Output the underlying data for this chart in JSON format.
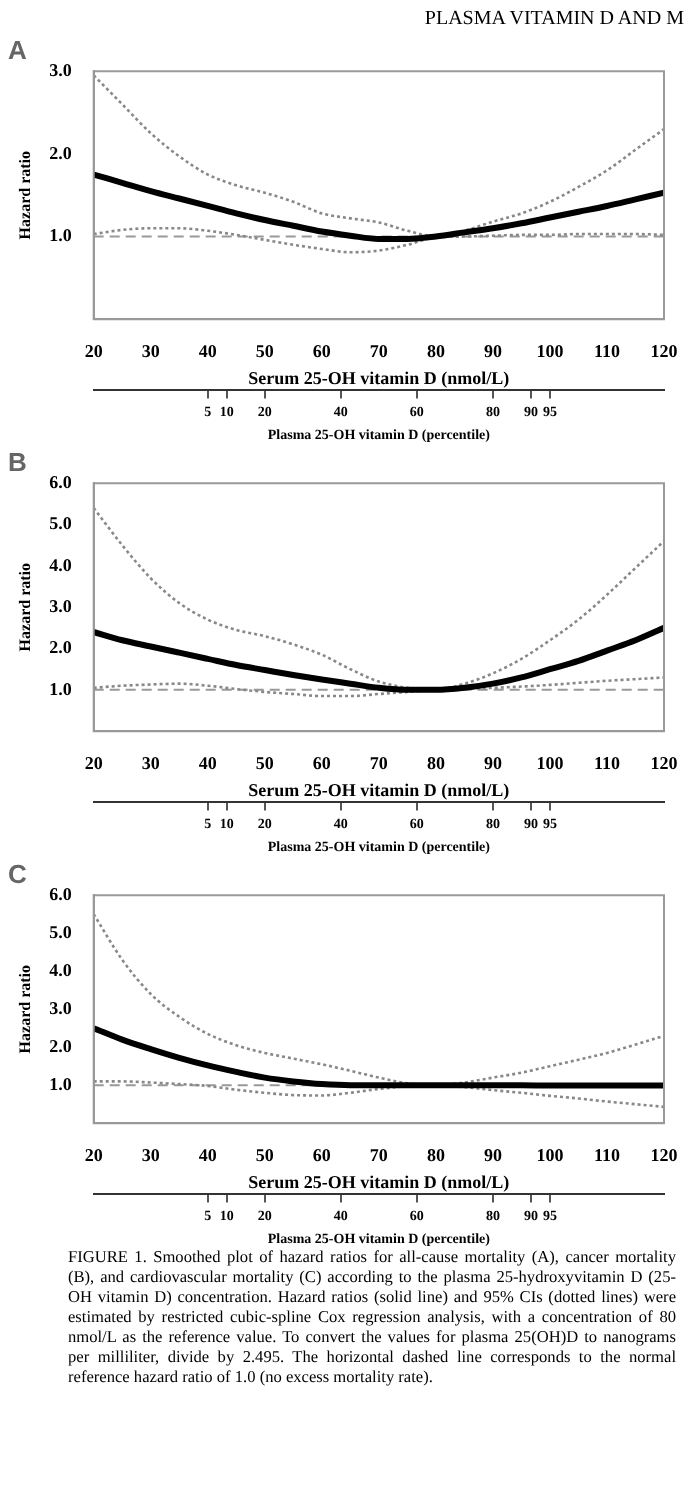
{
  "chart_data": [
    {
      "type": "line",
      "title": "A",
      "annotations": [
        "PLASMA VITAMIN D AND M"
      ],
      "xlabel": "Serum 25-OH vitamin D (nmol/L)",
      "x2label": "Plasma 25-OH vitamin D (percentile)",
      "ylabel": "Hazard ratio",
      "legend": false,
      "grid": false,
      "marker": "none",
      "x": [
        20,
        25,
        30,
        35,
        40,
        45,
        50,
        55,
        60,
        65,
        70,
        75,
        80,
        85,
        90,
        95,
        100,
        105,
        110,
        115,
        120
      ],
      "xlim": [
        20,
        120
      ],
      "xticks": [
        20,
        30,
        40,
        50,
        60,
        70,
        80,
        90,
        100,
        110,
        120
      ],
      "x2lim": [
        -25,
        125
      ],
      "x2ticks": [
        5,
        10,
        20,
        40,
        60,
        80,
        90,
        95
      ],
      "ylim": [
        0,
        3
      ],
      "yticks": [
        {
          "value": 1,
          "label": "1.0"
        },
        {
          "value": 2,
          "label": "2.0"
        },
        {
          "value": 3,
          "label": "3.0"
        }
      ],
      "ref_lines": [
        {
          "axis": "y",
          "value": 1,
          "color": "#999999",
          "line_style": "dashed"
        }
      ],
      "series": [
        {
          "color": "#000000",
          "line_style": "solid",
          "values": [
            1.75,
            1.65,
            1.55,
            1.46,
            1.37,
            1.28,
            1.2,
            1.13,
            1.06,
            1.01,
            0.97,
            0.97,
            1.0,
            1.05,
            1.1,
            1.16,
            1.23,
            1.3,
            1.37,
            1.45,
            1.53
          ]
        },
        {
          "color": "#888888",
          "line_style": "dotted",
          "values": [
            2.95,
            2.6,
            2.25,
            1.97,
            1.75,
            1.62,
            1.53,
            1.42,
            1.28,
            1.22,
            1.17,
            1.07,
            1.0,
            1.07,
            1.18,
            1.28,
            1.42,
            1.6,
            1.8,
            2.05,
            2.3
          ]
        },
        {
          "color": "#888888",
          "line_style": "dotted",
          "values": [
            1.03,
            1.08,
            1.1,
            1.1,
            1.07,
            1.02,
            0.96,
            0.9,
            0.85,
            0.81,
            0.83,
            0.9,
            0.99,
            1.0,
            1.01,
            1.02,
            1.02,
            1.03,
            1.03,
            1.03,
            1.02
          ]
        }
      ]
    },
    {
      "type": "line",
      "title": "B",
      "xlabel": "Serum 25-OH vitamin D (nmol/L)",
      "x2label": "Plasma 25-OH vitamin D (percentile)",
      "ylabel": "Hazard ratio",
      "legend": false,
      "grid": false,
      "marker": "none",
      "x": [
        20,
        25,
        30,
        35,
        40,
        45,
        50,
        55,
        60,
        65,
        70,
        75,
        80,
        85,
        90,
        95,
        100,
        105,
        110,
        115,
        120
      ],
      "xlim": [
        20,
        120
      ],
      "xticks": [
        20,
        30,
        40,
        50,
        60,
        70,
        80,
        90,
        100,
        110,
        120
      ],
      "x2lim": [
        -25,
        125
      ],
      "x2ticks": [
        5,
        10,
        20,
        40,
        60,
        80,
        90,
        95
      ],
      "ylim": [
        0,
        6
      ],
      "yticks": [
        {
          "value": 1,
          "label": "1.0"
        },
        {
          "value": 2,
          "label": "2.0"
        },
        {
          "value": 3,
          "label": "3.0"
        },
        {
          "value": 4,
          "label": "4.0"
        },
        {
          "value": 5,
          "label": "5.0"
        },
        {
          "value": 6,
          "label": "6.0"
        }
      ],
      "ref_lines": [
        {
          "axis": "y",
          "value": 1,
          "color": "#999999",
          "line_style": "dashed"
        }
      ],
      "series": [
        {
          "color": "#000000",
          "line_style": "solid",
          "values": [
            2.4,
            2.2,
            2.05,
            1.9,
            1.75,
            1.6,
            1.48,
            1.36,
            1.25,
            1.15,
            1.05,
            1.0,
            1.0,
            1.05,
            1.15,
            1.3,
            1.5,
            1.7,
            1.95,
            2.2,
            2.5
          ]
        },
        {
          "color": "#888888",
          "line_style": "dotted",
          "values": [
            5.4,
            4.5,
            3.7,
            3.1,
            2.7,
            2.45,
            2.3,
            2.1,
            1.85,
            1.5,
            1.2,
            1.05,
            1.0,
            1.15,
            1.4,
            1.75,
            2.2,
            2.7,
            3.3,
            3.95,
            4.6
          ]
        },
        {
          "color": "#888888",
          "line_style": "dotted",
          "values": [
            1.05,
            1.1,
            1.13,
            1.15,
            1.1,
            1.02,
            0.95,
            0.9,
            0.85,
            0.85,
            0.9,
            0.95,
            1.0,
            1.02,
            1.05,
            1.08,
            1.12,
            1.17,
            1.22,
            1.26,
            1.3
          ]
        }
      ]
    },
    {
      "type": "line",
      "title": "C",
      "annotations": [
        "FIGURE 1. Smoothed plot of hazard ratios for all-cause mortality (A), cancer mortality (B), and cardiovascular mortality (C) according to the plasma 25-hydroxyvitamin D (25-OH vitamin D) concentration. Hazard ratios (solid line) and 95% CIs (dotted lines) were estimated by restricted cubic-spline Cox regression analysis, with a concentration of 80 nmol/L as the reference value. To convert the values for plasma 25(OH)D to nanograms per milliliter, divide by 2.495. The horizontal dashed line corresponds to the normal reference hazard ratio of 1.0 (no excess mortality rate)."
      ],
      "xlabel": "Serum 25-OH vitamin D (nmol/L)",
      "x2label": "Plasma 25-OH vitamin D (percentile)",
      "ylabel": "Hazard ratio",
      "legend": false,
      "grid": false,
      "marker": "none",
      "x": [
        20,
        25,
        30,
        35,
        40,
        45,
        50,
        55,
        60,
        65,
        70,
        75,
        80,
        85,
        90,
        95,
        100,
        105,
        110,
        115,
        120
      ],
      "xlim": [
        20,
        120
      ],
      "xticks": [
        20,
        30,
        40,
        50,
        60,
        70,
        80,
        90,
        100,
        110,
        120
      ],
      "x2lim": [
        -25,
        125
      ],
      "x2ticks": [
        5,
        10,
        20,
        40,
        60,
        80,
        90,
        95
      ],
      "ylim": [
        0,
        6
      ],
      "yticks": [
        {
          "value": 1,
          "label": "1.0"
        },
        {
          "value": 2,
          "label": "2.0"
        },
        {
          "value": 3,
          "label": "3.0"
        },
        {
          "value": 4,
          "label": "4.0"
        },
        {
          "value": 5,
          "label": "5.0"
        },
        {
          "value": 6,
          "label": "6.0"
        }
      ],
      "ref_lines": [
        {
          "axis": "y",
          "value": 1,
          "color": "#999999",
          "line_style": "dashed"
        }
      ],
      "series": [
        {
          "color": "#000000",
          "line_style": "solid",
          "values": [
            2.5,
            2.2,
            1.95,
            1.72,
            1.52,
            1.35,
            1.2,
            1.1,
            1.03,
            1.0,
            1.0,
            1.0,
            1.0,
            1.0,
            1.0,
            1.0,
            0.99,
            0.99,
            0.99,
            0.99,
            0.99
          ]
        },
        {
          "color": "#888888",
          "line_style": "dotted",
          "values": [
            5.5,
            4.3,
            3.4,
            2.8,
            2.35,
            2.05,
            1.85,
            1.7,
            1.55,
            1.38,
            1.2,
            1.05,
            1.0,
            1.07,
            1.2,
            1.33,
            1.5,
            1.67,
            1.85,
            2.07,
            2.3
          ]
        },
        {
          "color": "#888888",
          "line_style": "dotted",
          "values": [
            1.1,
            1.1,
            1.07,
            1.03,
            0.98,
            0.88,
            0.8,
            0.74,
            0.73,
            0.8,
            0.9,
            0.97,
            1.0,
            0.95,
            0.87,
            0.8,
            0.72,
            0.65,
            0.57,
            0.5,
            0.43
          ]
        }
      ]
    }
  ]
}
